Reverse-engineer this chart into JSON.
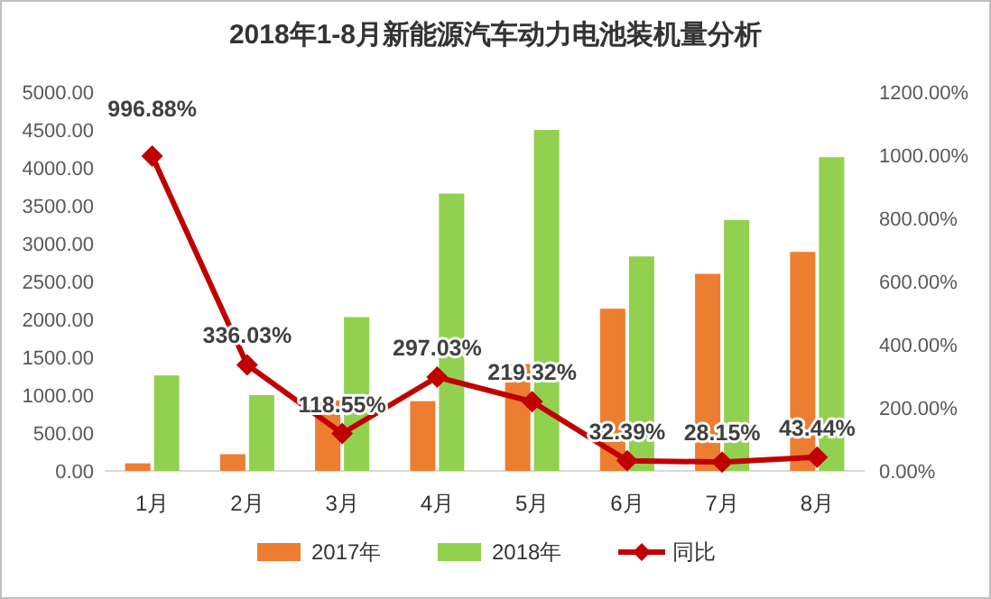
{
  "chart_data": {
    "type": "bar",
    "title": "2018年1-8月新能源汽车动力电池装机量分析",
    "categories": [
      "1月",
      "2月",
      "3月",
      "4月",
      "5月",
      "6月",
      "7月",
      "8月"
    ],
    "series": [
      {
        "name": "2017年",
        "color": "#ed7d31",
        "values": [
          100,
          220,
          930,
          920,
          1410,
          2140,
          2600,
          2890
        ]
      },
      {
        "name": "2018年",
        "color": "#92d050",
        "values": [
          1260,
          1000,
          2030,
          3660,
          4500,
          2830,
          3310,
          4140
        ]
      },
      {
        "name": "同比",
        "type": "line",
        "axis": "y2",
        "color": "#c00000",
        "marker": "diamond",
        "data_labels": true,
        "values": [
          996.88,
          336.03,
          118.55,
          297.03,
          219.32,
          32.39,
          28.15,
          43.44
        ],
        "value_labels": [
          "996.88%",
          "336.03%",
          "118.55%",
          "297.03%",
          "219.32%",
          "32.39%",
          "28.15%",
          "43.44%"
        ]
      }
    ],
    "ylim": [
      0,
      5000
    ],
    "yticks": [
      {
        "value": 0,
        "label": "0.00"
      },
      {
        "value": 500,
        "label": "500.00"
      },
      {
        "value": 1000,
        "label": "1000.00"
      },
      {
        "value": 1500,
        "label": "1500.00"
      },
      {
        "value": 2000,
        "label": "2000.00"
      },
      {
        "value": 2500,
        "label": "2500.00"
      },
      {
        "value": 3000,
        "label": "3000.00"
      },
      {
        "value": 3500,
        "label": "3500.00"
      },
      {
        "value": 4000,
        "label": "4000.00"
      },
      {
        "value": 4500,
        "label": "4500.00"
      },
      {
        "value": 5000,
        "label": "5000.00"
      }
    ],
    "y2lim": [
      0,
      1200
    ],
    "y2ticks": [
      {
        "value": 0,
        "label": "0.00%"
      },
      {
        "value": 200,
        "label": "200.00%"
      },
      {
        "value": 400,
        "label": "400.00%"
      },
      {
        "value": 600,
        "label": "600.00%"
      },
      {
        "value": 800,
        "label": "800.00%"
      },
      {
        "value": 1000,
        "label": "1000.00%"
      },
      {
        "value": 1200,
        "label": "1200.00%"
      }
    ],
    "grid": false,
    "legend": "bottom"
  }
}
